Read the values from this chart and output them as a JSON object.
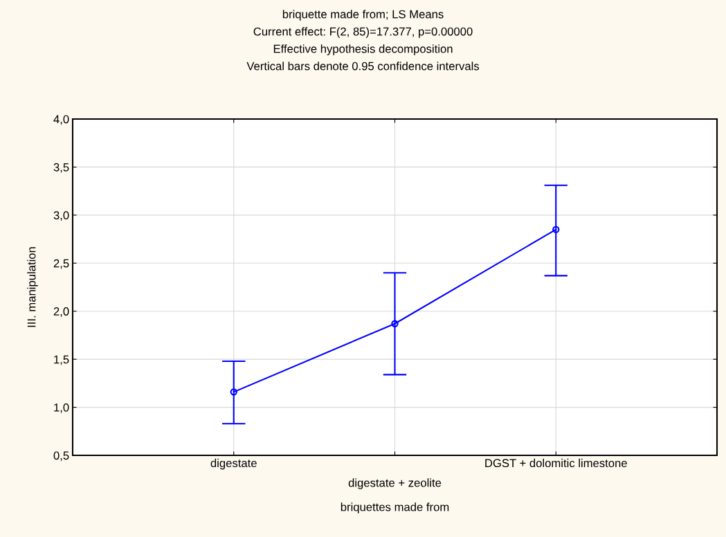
{
  "chart_data": {
    "type": "line",
    "title": "briquette made from; LS Means",
    "subtitle": "Current effect: F(2, 85)=17.377, p=0.00000",
    "annotations": [
      "Effective hypothesis decomposition",
      "Vertical bars denote 0.95 confidence intervals"
    ],
    "xlabel": "briquettes made from",
    "ylabel": "III. manipulation",
    "categories": [
      "digestate",
      "digestate + zeolite",
      "DGST + dolomitic limestone"
    ],
    "series": [
      {
        "color": "#0000ff",
        "values": [
          1.16,
          1.87,
          2.85
        ],
        "errors": [
          [
            0.83,
            1.48
          ],
          [
            1.34,
            2.4
          ],
          [
            2.37,
            3.31
          ]
        ]
      }
    ],
    "ylim": [
      0.5,
      4.0
    ],
    "yticks": [
      {
        "value": 0.5,
        "label": "0,5"
      },
      {
        "value": 1.0,
        "label": "1,0"
      },
      {
        "value": 1.5,
        "label": "1,5"
      },
      {
        "value": 2.0,
        "label": "2,0"
      },
      {
        "value": 2.5,
        "label": "2,5"
      },
      {
        "value": 3.0,
        "label": "3,0"
      },
      {
        "value": 3.5,
        "label": "3,5"
      },
      {
        "value": 4.0,
        "label": "4,0"
      }
    ],
    "grid": true,
    "marker": "circle",
    "line_style": "solid"
  }
}
